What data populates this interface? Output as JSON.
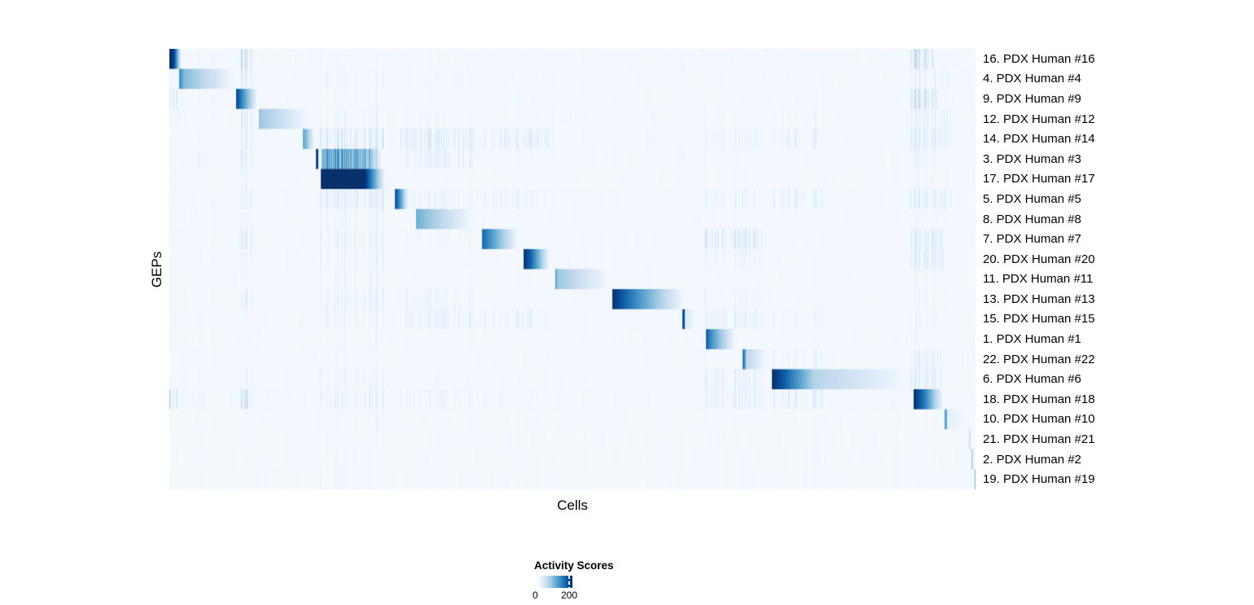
{
  "figure": {
    "background_color": "#ffffff",
    "text_color": "#000000"
  },
  "chart_data": {
    "type": "heatmap",
    "title": "",
    "xlabel": "Cells",
    "ylabel": "GEPs",
    "grid": false,
    "legend": {
      "title": "Activity Scores",
      "labels": [
        "0",
        "200"
      ],
      "tick_positions": [
        0.0,
        0.915
      ],
      "position": "bottom-center"
    },
    "scale": {
      "min": 0,
      "tick_value": 200,
      "max_approx": 218
    },
    "colormap": {
      "name": "Blues",
      "stops": [
        "#F7FBFF",
        "#DEEBF7",
        "#C6DBEF",
        "#9ECAE1",
        "#6BAED6",
        "#4292C6",
        "#2171B5",
        "#08519C",
        "#08306B"
      ]
    },
    "render": {
      "columns": 990,
      "background_level": 0.012
    },
    "rows": [
      {
        "label": "16. PDX Human #16",
        "noise": 0.03,
        "segments": [
          [
            0.0,
            0.005,
            1.0,
            0.95,
            0
          ],
          [
            0.005,
            0.014,
            0.95,
            0.05,
            0
          ]
        ],
        "stripes": [
          [
            0.082,
            0.105,
            0.33
          ],
          [
            0.918,
            0.948,
            0.3
          ],
          [
            0.013,
            0.078,
            0.05
          ]
        ]
      },
      {
        "label": "4. PDX Human #4",
        "noise": 0.03,
        "segments": [
          [
            0.012,
            0.017,
            0.65,
            0.5,
            0
          ],
          [
            0.017,
            0.078,
            0.45,
            0.03,
            0
          ]
        ],
        "stripes": [
          [
            0.082,
            0.105,
            0.15
          ],
          [
            0.185,
            0.265,
            0.07
          ],
          [
            0.918,
            0.97,
            0.1
          ],
          [
            0.279,
            0.374,
            0.05
          ]
        ]
      },
      {
        "label": "9. PDX Human #9",
        "noise": 0.03,
        "segments": [
          [
            0.082,
            0.091,
            0.95,
            0.62,
            0
          ],
          [
            0.091,
            0.108,
            0.62,
            0.05,
            0
          ]
        ],
        "stripes": [
          [
            0.0,
            0.01,
            0.28
          ],
          [
            0.918,
            0.955,
            0.28
          ],
          [
            0.013,
            0.078,
            0.06
          ],
          [
            0.185,
            0.265,
            0.06
          ]
        ]
      },
      {
        "label": "12. PDX Human #12",
        "noise": 0.03,
        "segments": [
          [
            0.111,
            0.116,
            0.4,
            0.35,
            0
          ],
          [
            0.116,
            0.172,
            0.35,
            0.02,
            0
          ]
        ],
        "stripes": [
          [
            0.082,
            0.105,
            0.18
          ],
          [
            0.185,
            0.265,
            0.09
          ],
          [
            0.279,
            0.374,
            0.06
          ],
          [
            0.747,
            0.81,
            0.07
          ],
          [
            0.918,
            0.97,
            0.12
          ]
        ]
      },
      {
        "label": "14. PDX Human #14",
        "noise": 0.035,
        "segments": [
          [
            0.165,
            0.169,
            0.55,
            0.45,
            0
          ],
          [
            0.169,
            0.178,
            0.45,
            0.08,
            0
          ]
        ],
        "stripes": [
          [
            0.082,
            0.105,
            0.18
          ],
          [
            0.185,
            0.265,
            0.22
          ],
          [
            0.279,
            0.376,
            0.18
          ],
          [
            0.386,
            0.47,
            0.13
          ],
          [
            0.664,
            0.739,
            0.1
          ],
          [
            0.747,
            0.81,
            0.12
          ],
          [
            0.918,
            0.97,
            0.18
          ]
        ]
      },
      {
        "label": "3. PDX Human #3",
        "noise": 0.03,
        "segments": [
          [
            0.181,
            0.184,
            0.95,
            0.9,
            0
          ],
          [
            0.188,
            0.245,
            0.58,
            0.48,
            1
          ],
          [
            0.245,
            0.263,
            0.48,
            0.05,
            1
          ]
        ],
        "stripes": [
          [
            0.082,
            0.105,
            0.18
          ],
          [
            0.279,
            0.376,
            0.13
          ],
          [
            0.918,
            0.955,
            0.1
          ],
          [
            0.013,
            0.078,
            0.06
          ]
        ]
      },
      {
        "label": "17. PDX Human #17",
        "noise": 0.02,
        "segments": [
          [
            0.187,
            0.242,
            1.0,
            1.0,
            0
          ],
          [
            0.242,
            0.267,
            1.0,
            0.03,
            0
          ]
        ],
        "stripes": [
          [
            0.082,
            0.105,
            0.09
          ],
          [
            0.918,
            0.948,
            0.07
          ]
        ]
      },
      {
        "label": "5. PDX Human #5",
        "noise": 0.035,
        "segments": [
          [
            0.279,
            0.284,
            0.92,
            0.7,
            0
          ],
          [
            0.284,
            0.295,
            0.7,
            0.08,
            0
          ]
        ],
        "stripes": [
          [
            0.082,
            0.105,
            0.14
          ],
          [
            0.185,
            0.265,
            0.18
          ],
          [
            0.3,
            0.376,
            0.09
          ],
          [
            0.386,
            0.47,
            0.1
          ],
          [
            0.664,
            0.739,
            0.09
          ],
          [
            0.747,
            0.81,
            0.13
          ],
          [
            0.918,
            0.97,
            0.17
          ]
        ]
      },
      {
        "label": "8. PDX Human #8",
        "noise": 0.025,
        "segments": [
          [
            0.306,
            0.312,
            0.5,
            0.45,
            0
          ],
          [
            0.312,
            0.374,
            0.45,
            0.02,
            0
          ]
        ],
        "stripes": [
          [
            0.185,
            0.265,
            0.09
          ],
          [
            0.082,
            0.105,
            0.07
          ],
          [
            0.918,
            0.955,
            0.06
          ]
        ]
      },
      {
        "label": "7. PDX Human #7",
        "noise": 0.03,
        "segments": [
          [
            0.387,
            0.396,
            0.8,
            0.65,
            0
          ],
          [
            0.396,
            0.43,
            0.65,
            0.05,
            0
          ]
        ],
        "stripes": [
          [
            0.082,
            0.105,
            0.18
          ],
          [
            0.185,
            0.265,
            0.13
          ],
          [
            0.664,
            0.739,
            0.2
          ],
          [
            0.918,
            0.96,
            0.22
          ],
          [
            0.279,
            0.376,
            0.07
          ]
        ]
      },
      {
        "label": "20. PDX Human #20",
        "noise": 0.03,
        "segments": [
          [
            0.439,
            0.448,
            1.0,
            0.8,
            0
          ],
          [
            0.448,
            0.47,
            0.8,
            0.06,
            0
          ]
        ],
        "stripes": [
          [
            0.082,
            0.105,
            0.1
          ],
          [
            0.185,
            0.265,
            0.09
          ],
          [
            0.664,
            0.739,
            0.09
          ],
          [
            0.918,
            0.96,
            0.2
          ]
        ]
      },
      {
        "label": "11. PDX Human #11",
        "noise": 0.025,
        "segments": [
          [
            0.478,
            0.481,
            0.65,
            0.4,
            0
          ],
          [
            0.481,
            0.542,
            0.38,
            0.03,
            0
          ]
        ],
        "stripes": [
          [
            0.185,
            0.265,
            0.09
          ],
          [
            0.082,
            0.105,
            0.06
          ],
          [
            0.918,
            0.955,
            0.06
          ]
        ]
      },
      {
        "label": "13. PDX Human #13",
        "noise": 0.03,
        "segments": [
          [
            0.549,
            0.569,
            1.0,
            0.75,
            0
          ],
          [
            0.569,
            0.636,
            0.75,
            0.04,
            0
          ]
        ],
        "stripes": [
          [
            0.082,
            0.105,
            0.13
          ],
          [
            0.185,
            0.265,
            0.13
          ],
          [
            0.279,
            0.376,
            0.08
          ],
          [
            0.664,
            0.739,
            0.08
          ],
          [
            0.918,
            0.955,
            0.07
          ]
        ]
      },
      {
        "label": "15. PDX Human #15",
        "noise": 0.03,
        "segments": [
          [
            0.636,
            0.639,
            0.9,
            0.85,
            0
          ],
          [
            0.639,
            0.651,
            0.15,
            0.04,
            0
          ]
        ],
        "stripes": [
          [
            0.185,
            0.265,
            0.09
          ],
          [
            0.279,
            0.376,
            0.13
          ],
          [
            0.386,
            0.47,
            0.11
          ],
          [
            0.664,
            0.739,
            0.13
          ],
          [
            0.747,
            0.81,
            0.09
          ],
          [
            0.918,
            0.955,
            0.09
          ]
        ]
      },
      {
        "label": "1. PDX Human #1",
        "noise": 0.02,
        "segments": [
          [
            0.665,
            0.672,
            0.85,
            0.62,
            0
          ],
          [
            0.672,
            0.699,
            0.62,
            0.06,
            0
          ]
        ],
        "stripes": [
          [
            0.185,
            0.265,
            0.06
          ],
          [
            0.918,
            0.955,
            0.06
          ]
        ]
      },
      {
        "label": "22. PDX Human #22",
        "noise": 0.025,
        "segments": [
          [
            0.711,
            0.715,
            0.8,
            0.45,
            0
          ],
          [
            0.715,
            0.739,
            0.28,
            0.03,
            0
          ]
        ],
        "stripes": [
          [
            0.747,
            0.81,
            0.11
          ],
          [
            0.918,
            0.96,
            0.13
          ],
          [
            0.185,
            0.265,
            0.06
          ]
        ]
      },
      {
        "label": "6. PDX Human #6",
        "noise": 0.03,
        "segments": [
          [
            0.747,
            0.761,
            1.0,
            0.85,
            0
          ],
          [
            0.761,
            0.8,
            0.85,
            0.3,
            0
          ],
          [
            0.8,
            0.911,
            0.3,
            0.03,
            0
          ]
        ],
        "stripes": [
          [
            0.082,
            0.105,
            0.09
          ],
          [
            0.185,
            0.265,
            0.09
          ],
          [
            0.664,
            0.739,
            0.13
          ],
          [
            0.918,
            0.96,
            0.18
          ]
        ]
      },
      {
        "label": "18. PDX Human #18",
        "noise": 0.035,
        "segments": [
          [
            0.923,
            0.937,
            1.0,
            0.7,
            0
          ],
          [
            0.937,
            0.958,
            0.7,
            0.05,
            0
          ]
        ],
        "stripes": [
          [
            0.0,
            0.01,
            0.38
          ],
          [
            0.082,
            0.105,
            0.28
          ],
          [
            0.185,
            0.265,
            0.13
          ],
          [
            0.279,
            0.376,
            0.09
          ],
          [
            0.664,
            0.739,
            0.14
          ],
          [
            0.747,
            0.81,
            0.18
          ],
          [
            0.013,
            0.078,
            0.07
          ]
        ]
      },
      {
        "label": "10. PDX Human #10",
        "noise": 0.015,
        "segments": [
          [
            0.961,
            0.964,
            0.6,
            0.5,
            0
          ],
          [
            0.964,
            0.99,
            0.1,
            0.02,
            0
          ]
        ],
        "stripes": [
          [
            0.185,
            0.265,
            0.05
          ],
          [
            0.21,
            0.213,
            0.3
          ]
        ]
      },
      {
        "label": "21. PDX Human #21",
        "noise": 0.015,
        "segments": [
          [
            0.991,
            0.993,
            0.25,
            0.2,
            0
          ]
        ],
        "stripes": [
          [
            0.185,
            0.265,
            0.05
          ],
          [
            0.082,
            0.105,
            0.04
          ]
        ]
      },
      {
        "label": "2. PDX Human #2",
        "noise": 0.015,
        "segments": [
          [
            0.994,
            0.996,
            0.35,
            0.3,
            0
          ]
        ],
        "stripes": [
          [
            0.185,
            0.255,
            0.06
          ]
        ]
      },
      {
        "label": "19. PDX Human #19",
        "noise": 0.015,
        "segments": [
          [
            0.998,
            1.0,
            0.5,
            0.4,
            0
          ]
        ],
        "stripes": [
          [
            0.185,
            0.255,
            0.07
          ]
        ]
      }
    ]
  }
}
